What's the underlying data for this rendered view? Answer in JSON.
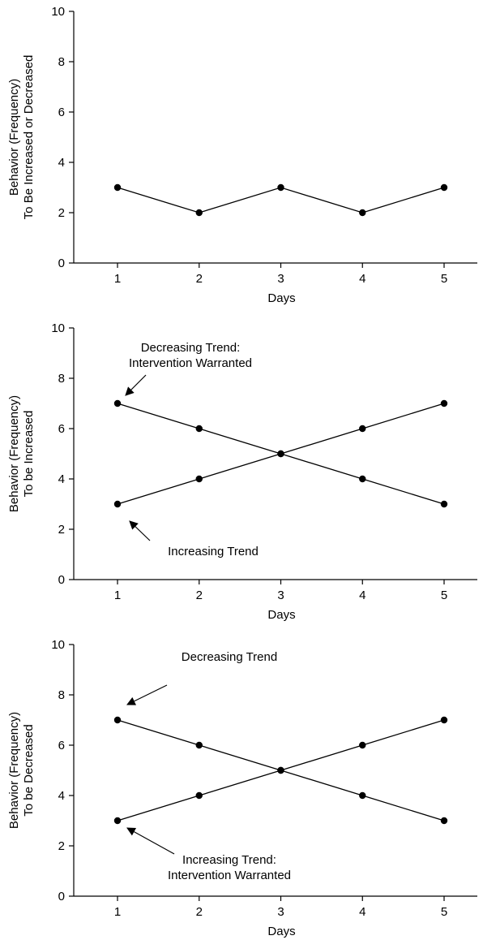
{
  "chart_data": [
    {
      "type": "line",
      "xlabel": "Days",
      "ylabel": [
        "Behavior (Frequency)",
        "To Be Increased or Decreased"
      ],
      "xlim": [
        0.5,
        5.5
      ],
      "ylim": [
        0,
        10
      ],
      "x_ticks": [
        1,
        2,
        3,
        4,
        5
      ],
      "y_ticks": [
        0,
        2,
        4,
        6,
        8,
        10
      ],
      "x": [
        1,
        2,
        3,
        4,
        5
      ],
      "series": [
        {
          "values": [
            3,
            2,
            3,
            2,
            3
          ]
        }
      ],
      "annotations": []
    },
    {
      "type": "line",
      "xlabel": "Days",
      "ylabel": [
        "Behavior (Frequency)",
        "To be Increased"
      ],
      "xlim": [
        0.5,
        5.5
      ],
      "ylim": [
        0,
        10
      ],
      "x_ticks": [
        1,
        2,
        3,
        4,
        5
      ],
      "y_ticks": [
        0,
        2,
        4,
        6,
        8,
        10
      ],
      "x": [
        1,
        2,
        3,
        4,
        5
      ],
      "series": [
        {
          "values": [
            7,
            6,
            5,
            4,
            3
          ]
        },
        {
          "values": [
            3,
            4,
            5,
            6,
            7
          ]
        }
      ],
      "annotations": [
        {
          "lines": [
            "Decreasing Trend:",
            "Intervention Warranted"
          ],
          "point": [
            1,
            7
          ]
        },
        {
          "lines": [
            "Increasing Trend"
          ],
          "point": [
            1,
            3
          ]
        }
      ]
    },
    {
      "type": "line",
      "xlabel": "Days",
      "ylabel": [
        "Behavior (Frequency)",
        "To be Decreased"
      ],
      "xlim": [
        0.5,
        5.5
      ],
      "ylim": [
        0,
        10
      ],
      "x_ticks": [
        1,
        2,
        3,
        4,
        5
      ],
      "y_ticks": [
        0,
        2,
        4,
        6,
        8,
        10
      ],
      "x": [
        1,
        2,
        3,
        4,
        5
      ],
      "series": [
        {
          "values": [
            7,
            6,
            5,
            4,
            3
          ]
        },
        {
          "values": [
            3,
            4,
            5,
            6,
            7
          ]
        }
      ],
      "annotations": [
        {
          "lines": [
            "Decreasing Trend"
          ],
          "point": [
            1,
            7
          ]
        },
        {
          "lines": [
            "Increasing Trend:",
            "Intervention Warranted"
          ],
          "point": [
            1,
            3
          ]
        }
      ]
    }
  ]
}
